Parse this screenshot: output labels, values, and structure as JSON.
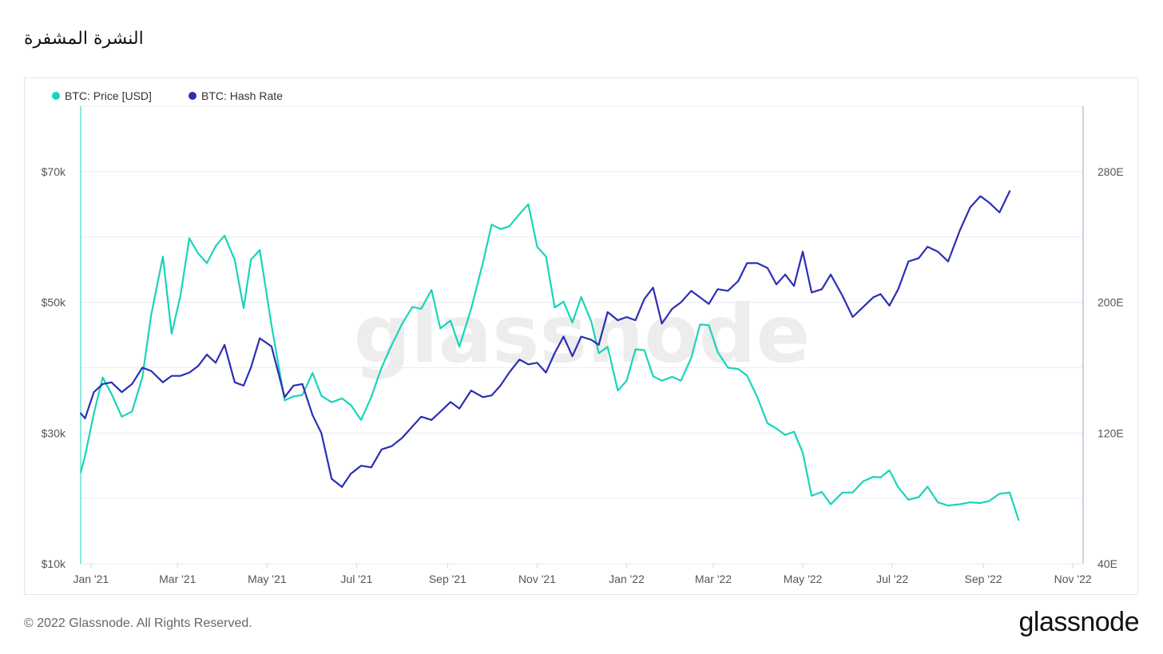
{
  "header": {
    "title": "النشرة المشفرة"
  },
  "footer": {
    "copyright": "© 2022 Glassnode. All Rights Reserved.",
    "logo": "glassnode"
  },
  "watermark": "glassnode",
  "colors": {
    "price": "#18d4bc",
    "hash": "#2a2fb5",
    "grid": "#e8ebef",
    "axis_line_left": "#18d4bc",
    "axis_line_right": "#8da7c9"
  },
  "chart_data": {
    "type": "line",
    "legend_position": "top-left",
    "grid": true,
    "x_ticks": [
      "Jan '21",
      "Mar '21",
      "May '21",
      "Jul '21",
      "Sep '21",
      "Nov '21",
      "Jan '22",
      "Mar '22",
      "May '22",
      "Jul '22",
      "Sep '22",
      "Nov '22"
    ],
    "x_range": [
      "2020-12-25",
      "2022-11-08"
    ],
    "y_left": {
      "ticks": [
        "$10k",
        "$30k",
        "$50k",
        "$70k"
      ],
      "range": [
        10000,
        80000
      ]
    },
    "y_right": {
      "ticks": [
        "40E",
        "120E",
        "200E",
        "280E"
      ],
      "range": [
        40,
        320
      ]
    },
    "series": [
      {
        "name": "BTC: Price [USD]",
        "axis": "left",
        "points": [
          [
            "2020-12-25",
            24000
          ],
          [
            "2020-12-28",
            26500
          ],
          [
            "2021-01-03",
            33000
          ],
          [
            "2021-01-09",
            38500
          ],
          [
            "2021-01-15",
            36000
          ],
          [
            "2021-01-22",
            32500
          ],
          [
            "2021-01-29",
            33300
          ],
          [
            "2021-02-05",
            38500
          ],
          [
            "2021-02-11",
            48000
          ],
          [
            "2021-02-19",
            57000
          ],
          [
            "2021-02-25",
            45200
          ],
          [
            "2021-03-03",
            51000
          ],
          [
            "2021-03-09",
            59800
          ],
          [
            "2021-03-15",
            57500
          ],
          [
            "2021-03-21",
            56000
          ],
          [
            "2021-03-27",
            58600
          ],
          [
            "2021-04-02",
            60200
          ],
          [
            "2021-04-09",
            56500
          ],
          [
            "2021-04-15",
            49100
          ],
          [
            "2021-04-20",
            56500
          ],
          [
            "2021-04-26",
            58000
          ],
          [
            "2021-05-04",
            46500
          ],
          [
            "2021-05-13",
            35000
          ],
          [
            "2021-05-19",
            35600
          ],
          [
            "2021-05-25",
            35800
          ],
          [
            "2021-06-01",
            39200
          ],
          [
            "2021-06-07",
            35700
          ],
          [
            "2021-06-14",
            34700
          ],
          [
            "2021-06-21",
            35300
          ],
          [
            "2021-06-27",
            34300
          ],
          [
            "2021-07-04",
            32000
          ],
          [
            "2021-07-11",
            35500
          ],
          [
            "2021-07-18",
            40000
          ],
          [
            "2021-07-25",
            43500
          ],
          [
            "2021-08-01",
            46700
          ],
          [
            "2021-08-08",
            49300
          ],
          [
            "2021-08-14",
            49000
          ],
          [
            "2021-08-21",
            51900
          ],
          [
            "2021-08-27",
            46000
          ],
          [
            "2021-09-03",
            47200
          ],
          [
            "2021-09-09",
            43200
          ],
          [
            "2021-09-17",
            49000
          ],
          [
            "2021-09-25",
            56000
          ],
          [
            "2021-10-01",
            61900
          ],
          [
            "2021-10-07",
            61200
          ],
          [
            "2021-10-13",
            61600
          ],
          [
            "2021-10-20",
            63500
          ],
          [
            "2021-10-26",
            65000
          ],
          [
            "2021-11-01",
            58500
          ],
          [
            "2021-11-07",
            57000
          ],
          [
            "2021-11-13",
            49200
          ],
          [
            "2021-11-19",
            50100
          ],
          [
            "2021-11-25",
            46900
          ],
          [
            "2021-12-01",
            50800
          ],
          [
            "2021-12-08",
            47000
          ],
          [
            "2021-12-13",
            42200
          ],
          [
            "2021-12-19",
            43200
          ],
          [
            "2021-12-26",
            36500
          ],
          [
            "2022-01-01",
            38000
          ],
          [
            "2022-01-07",
            42800
          ],
          [
            "2022-01-13",
            42700
          ],
          [
            "2022-01-19",
            38700
          ],
          [
            "2022-01-25",
            38000
          ],
          [
            "2022-02-01",
            38600
          ],
          [
            "2022-02-07",
            38000
          ],
          [
            "2022-02-14",
            41500
          ],
          [
            "2022-02-20",
            46600
          ],
          [
            "2022-02-26",
            46500
          ],
          [
            "2022-03-04",
            42400
          ],
          [
            "2022-03-11",
            40000
          ],
          [
            "2022-03-18",
            39800
          ],
          [
            "2022-03-24",
            38800
          ],
          [
            "2022-03-31",
            35500
          ],
          [
            "2022-04-07",
            31500
          ],
          [
            "2022-04-13",
            30700
          ],
          [
            "2022-04-19",
            29700
          ],
          [
            "2022-04-25",
            30200
          ],
          [
            "2022-05-01",
            27000
          ],
          [
            "2022-05-07",
            20400
          ],
          [
            "2022-05-14",
            21000
          ],
          [
            "2022-05-20",
            19100
          ],
          [
            "2022-05-28",
            20900
          ],
          [
            "2022-06-04",
            20900
          ],
          [
            "2022-06-11",
            22600
          ],
          [
            "2022-06-18",
            23300
          ],
          [
            "2022-06-23",
            23200
          ],
          [
            "2022-06-29",
            24300
          ],
          [
            "2022-07-05",
            21700
          ],
          [
            "2022-07-12",
            19800
          ],
          [
            "2022-07-19",
            20200
          ],
          [
            "2022-07-25",
            21800
          ],
          [
            "2022-08-01",
            19400
          ],
          [
            "2022-08-08",
            18900
          ],
          [
            "2022-08-16",
            19100
          ],
          [
            "2022-08-23",
            19400
          ],
          [
            "2022-08-30",
            19300
          ],
          [
            "2022-09-05",
            19600
          ],
          [
            "2022-09-12",
            20700
          ],
          [
            "2022-09-19",
            20900
          ],
          [
            "2022-09-25",
            16700
          ]
        ]
      },
      {
        "name": "BTC: Hash Rate",
        "axis": "right",
        "points": [
          [
            "2020-12-25",
            132
          ],
          [
            "2020-12-28",
            129
          ],
          [
            "2021-01-03",
            145
          ],
          [
            "2021-01-09",
            150
          ],
          [
            "2021-01-15",
            151
          ],
          [
            "2021-01-22",
            145
          ],
          [
            "2021-01-29",
            150
          ],
          [
            "2021-02-05",
            160
          ],
          [
            "2021-02-11",
            158
          ],
          [
            "2021-02-19",
            151
          ],
          [
            "2021-02-25",
            155
          ],
          [
            "2021-03-03",
            155
          ],
          [
            "2021-03-09",
            157
          ],
          [
            "2021-03-15",
            161
          ],
          [
            "2021-03-21",
            168
          ],
          [
            "2021-03-27",
            163
          ],
          [
            "2021-04-02",
            174
          ],
          [
            "2021-04-09",
            151
          ],
          [
            "2021-04-15",
            149
          ],
          [
            "2021-04-20",
            160
          ],
          [
            "2021-04-26",
            178
          ],
          [
            "2021-05-04",
            173
          ],
          [
            "2021-05-13",
            142
          ],
          [
            "2021-05-19",
            149
          ],
          [
            "2021-05-25",
            150
          ],
          [
            "2021-06-01",
            131
          ],
          [
            "2021-06-07",
            120
          ],
          [
            "2021-06-14",
            92
          ],
          [
            "2021-06-21",
            87
          ],
          [
            "2021-06-27",
            95
          ],
          [
            "2021-07-04",
            100
          ],
          [
            "2021-07-11",
            99
          ],
          [
            "2021-07-18",
            110
          ],
          [
            "2021-07-25",
            112
          ],
          [
            "2021-08-01",
            117
          ],
          [
            "2021-08-08",
            124
          ],
          [
            "2021-08-14",
            130
          ],
          [
            "2021-08-21",
            128
          ],
          [
            "2021-08-27",
            133
          ],
          [
            "2021-09-03",
            139
          ],
          [
            "2021-09-09",
            135
          ],
          [
            "2021-09-17",
            146
          ],
          [
            "2021-09-25",
            142
          ],
          [
            "2021-10-01",
            143
          ],
          [
            "2021-10-07",
            149
          ],
          [
            "2021-10-13",
            157
          ],
          [
            "2021-10-20",
            165
          ],
          [
            "2021-10-26",
            162
          ],
          [
            "2021-11-01",
            163
          ],
          [
            "2021-11-07",
            157
          ],
          [
            "2021-11-13",
            169
          ],
          [
            "2021-11-19",
            179
          ],
          [
            "2021-11-25",
            167
          ],
          [
            "2021-12-01",
            179
          ],
          [
            "2021-12-08",
            177
          ],
          [
            "2021-12-13",
            174
          ],
          [
            "2021-12-19",
            194
          ],
          [
            "2021-12-26",
            189
          ],
          [
            "2022-01-01",
            191
          ],
          [
            "2022-01-07",
            189
          ],
          [
            "2022-01-13",
            202
          ],
          [
            "2022-01-19",
            209
          ],
          [
            "2022-01-25",
            187
          ],
          [
            "2022-02-01",
            196
          ],
          [
            "2022-02-07",
            200
          ],
          [
            "2022-02-14",
            207
          ],
          [
            "2022-02-20",
            203
          ],
          [
            "2022-02-26",
            199
          ],
          [
            "2022-03-04",
            208
          ],
          [
            "2022-03-11",
            207
          ],
          [
            "2022-03-18",
            213
          ],
          [
            "2022-03-24",
            224
          ],
          [
            "2022-03-31",
            224
          ],
          [
            "2022-04-07",
            221
          ],
          [
            "2022-04-13",
            211
          ],
          [
            "2022-04-19",
            217
          ],
          [
            "2022-04-25",
            210
          ],
          [
            "2022-05-01",
            231
          ],
          [
            "2022-05-07",
            206
          ],
          [
            "2022-05-14",
            208
          ],
          [
            "2022-05-20",
            217
          ],
          [
            "2022-05-28",
            204
          ],
          [
            "2022-06-04",
            191
          ],
          [
            "2022-06-11",
            197
          ],
          [
            "2022-06-18",
            203
          ],
          [
            "2022-06-23",
            205
          ],
          [
            "2022-06-29",
            198
          ],
          [
            "2022-07-05",
            208
          ],
          [
            "2022-07-12",
            225
          ],
          [
            "2022-07-19",
            227
          ],
          [
            "2022-07-25",
            234
          ],
          [
            "2022-08-01",
            231
          ],
          [
            "2022-08-08",
            225
          ],
          [
            "2022-08-16",
            244
          ],
          [
            "2022-08-23",
            258
          ],
          [
            "2022-08-30",
            265
          ],
          [
            "2022-09-05",
            261
          ],
          [
            "2022-09-12",
            255
          ],
          [
            "2022-09-19",
            268
          ]
        ]
      }
    ]
  }
}
